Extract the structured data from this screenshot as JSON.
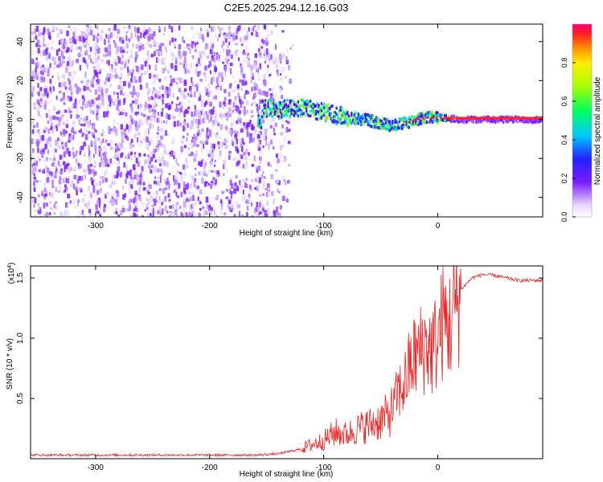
{
  "title": "C2E5.2025.294.12.16.G03",
  "chart_data": [
    {
      "type": "heatmap",
      "title": "C2E5.2025.294.12.16.G03",
      "xlabel": "Height of straight line (km)",
      "ylabel": "Frequency (Hz)",
      "xlim": [
        -357,
        92
      ],
      "ylim": [
        -50,
        49
      ],
      "x_ticks": [
        -300,
        -200,
        -100,
        0
      ],
      "y_ticks": [
        -40,
        -20,
        0,
        20,
        40
      ],
      "colorbar": {
        "label": "Normalized spectral amplitude",
        "range": [
          0,
          1
        ],
        "ticks": [
          0.0,
          0.2,
          0.4,
          0.6,
          0.8
        ]
      },
      "signal_centerline": [
        {
          "x": -155,
          "y": 6
        },
        {
          "x": -140,
          "y": 5
        },
        {
          "x": -125,
          "y": 6
        },
        {
          "x": -110,
          "y": 5
        },
        {
          "x": -95,
          "y": 3
        },
        {
          "x": -80,
          "y": 1
        },
        {
          "x": -65,
          "y": 0
        },
        {
          "x": -50,
          "y": -2
        },
        {
          "x": -40,
          "y": -3
        },
        {
          "x": -30,
          "y": -2
        },
        {
          "x": -20,
          "y": 0
        },
        {
          "x": -10,
          "y": 1
        },
        {
          "x": 0,
          "y": 1
        },
        {
          "x": 20,
          "y": 0
        },
        {
          "x": 92,
          "y": 0
        }
      ]
    },
    {
      "type": "line",
      "title": "",
      "xlabel": "Height of straight line (km)",
      "ylabel": "SNR (10 * v/v)",
      "scale_note": "(x10",
      "scale_exp": "4",
      "scale_close": ")",
      "xlim": [
        -357,
        92
      ],
      "ylim": [
        0,
        1.6
      ],
      "x_ticks": [
        -300,
        -200,
        -100,
        0
      ],
      "y_ticks": [
        0.5,
        1.0,
        1.5
      ],
      "y_tick_labels": [
        "0.5",
        "1.0",
        "1.5"
      ],
      "series": [
        {
          "name": "SNR",
          "color": "#ee2222",
          "x": [
            -357,
            -300,
            -250,
            -200,
            -160,
            -140,
            -120,
            -110,
            -100,
            -90,
            -80,
            -70,
            -60,
            -50,
            -45,
            -40,
            -35,
            -30,
            -25,
            -20,
            -15,
            -10,
            -5,
            0,
            5,
            10,
            15,
            20,
            25,
            30,
            40,
            50,
            60,
            70,
            80,
            92
          ],
          "y": [
            0.03,
            0.03,
            0.03,
            0.03,
            0.03,
            0.04,
            0.08,
            0.12,
            0.15,
            0.22,
            0.2,
            0.25,
            0.28,
            0.32,
            0.35,
            0.4,
            0.55,
            0.6,
            0.75,
            0.85,
            0.9,
            0.95,
            0.9,
            1.0,
            1.15,
            1.1,
            1.25,
            1.4,
            1.45,
            1.5,
            1.53,
            1.52,
            1.5,
            1.48,
            1.48,
            1.48
          ]
        }
      ]
    }
  ]
}
